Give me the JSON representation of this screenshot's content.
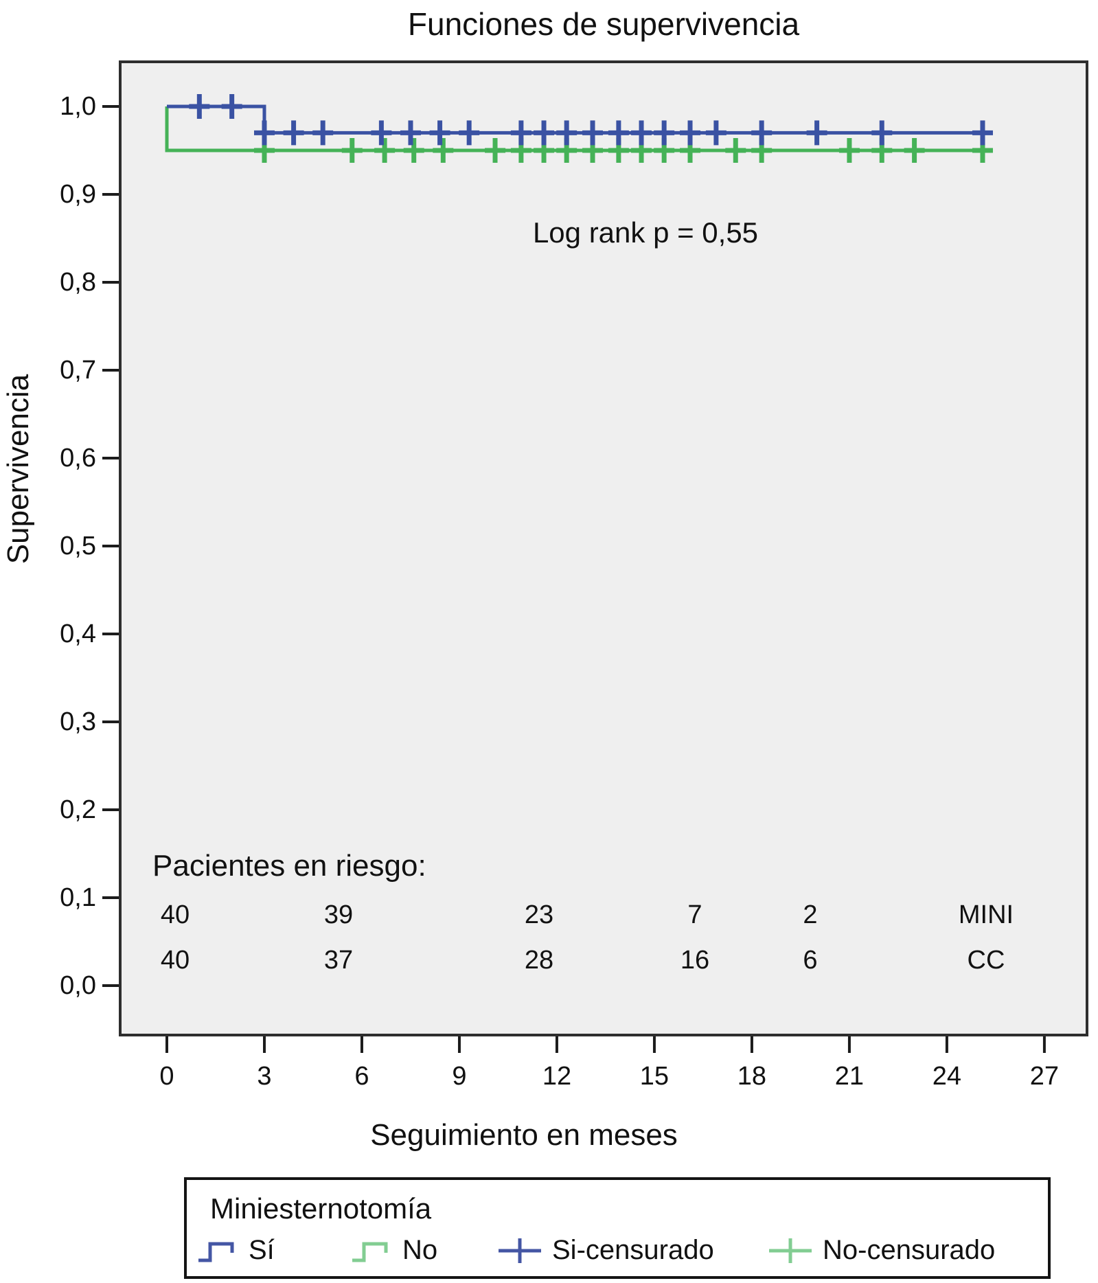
{
  "chart_data": {
    "type": "line",
    "subtype": "kaplan-meier-step",
    "title": "Funciones de supervivencia",
    "xlabel": "Seguimiento en meses",
    "ylabel": "Supervivencia",
    "annotation": "Log rank p = 0,55",
    "xlim": [
      -1.44,
      28.31
    ],
    "ylim": [
      -0.056,
      1.051
    ],
    "grid": false,
    "plot_bg": "#EFEFEF",
    "x_ticks": {
      "values": [
        0,
        3,
        6,
        9,
        12,
        15,
        18,
        21,
        24,
        27
      ],
      "labels": [
        "0",
        "3",
        "6",
        "9",
        "12",
        "15",
        "18",
        "21",
        "24",
        "27"
      ]
    },
    "y_ticks": {
      "values": [
        1.0,
        0.9,
        0.8,
        0.7,
        0.6,
        0.5,
        0.4,
        0.3,
        0.2,
        0.1,
        0.0
      ],
      "labels": [
        "1,0",
        "0,9",
        "0,8",
        "0,7",
        "0,6",
        "0,5",
        "0,4",
        "0,3",
        "0,2",
        "0,1",
        "0,0"
      ]
    },
    "series": [
      {
        "name": "Sí",
        "color": "#3A52A3",
        "steps": [
          [
            0,
            1.0
          ],
          [
            3,
            1.0
          ],
          [
            3,
            0.97
          ],
          [
            25.35,
            0.97
          ]
        ],
        "censored": [
          [
            1,
            1.0
          ],
          [
            2,
            1.0
          ],
          [
            3,
            0.97
          ],
          [
            3.9,
            0.97
          ],
          [
            4.8,
            0.97
          ],
          [
            6.6,
            0.97
          ],
          [
            7.5,
            0.97
          ],
          [
            8.4,
            0.97
          ],
          [
            9.3,
            0.97
          ],
          [
            10.9,
            0.97
          ],
          [
            11.6,
            0.97
          ],
          [
            12.3,
            0.97
          ],
          [
            13.1,
            0.97
          ],
          [
            13.9,
            0.97
          ],
          [
            14.6,
            0.97
          ],
          [
            15.3,
            0.97
          ],
          [
            16.1,
            0.97
          ],
          [
            16.9,
            0.97
          ],
          [
            18.3,
            0.97
          ],
          [
            20.0,
            0.97
          ],
          [
            22.0,
            0.97
          ],
          [
            25.1,
            0.97
          ]
        ]
      },
      {
        "name": "No",
        "color": "#45B257",
        "steps": [
          [
            0,
            1.0
          ],
          [
            0,
            0.95
          ],
          [
            25.35,
            0.95
          ]
        ],
        "censored": [
          [
            3,
            0.95
          ],
          [
            5.7,
            0.95
          ],
          [
            6.7,
            0.95
          ],
          [
            7.6,
            0.95
          ],
          [
            8.5,
            0.95
          ],
          [
            10.1,
            0.95
          ],
          [
            10.9,
            0.95
          ],
          [
            11.6,
            0.95
          ],
          [
            12.3,
            0.95
          ],
          [
            13.1,
            0.95
          ],
          [
            13.9,
            0.95
          ],
          [
            14.6,
            0.95
          ],
          [
            15.3,
            0.95
          ],
          [
            16.1,
            0.95
          ],
          [
            17.5,
            0.95
          ],
          [
            18.3,
            0.95
          ],
          [
            21.0,
            0.95
          ],
          [
            22.0,
            0.95
          ],
          [
            23.0,
            0.95
          ],
          [
            25.1,
            0.95
          ]
        ]
      }
    ],
    "at_risk": {
      "title": "Pacientes en riesgo:",
      "rows": [
        {
          "label": "MINI",
          "counts": [
            "40",
            "39",
            "23",
            "7",
            "2"
          ]
        },
        {
          "label": "CC",
          "counts": [
            "40",
            "37",
            "28",
            "16",
            "6"
          ]
        }
      ]
    }
  },
  "legend": {
    "title": "Miniesternotomía",
    "items": [
      {
        "label": "Sí",
        "icon": "step-line-icon",
        "color": "#4456A4"
      },
      {
        "label": "No",
        "icon": "step-line-icon",
        "color": "#82CD92"
      },
      {
        "label": "Si-censurado",
        "icon": "censored-plus-icon",
        "color": "#4456A4"
      },
      {
        "label": "No-censurado",
        "icon": "censored-plus-icon",
        "color": "#82CD92"
      }
    ]
  }
}
